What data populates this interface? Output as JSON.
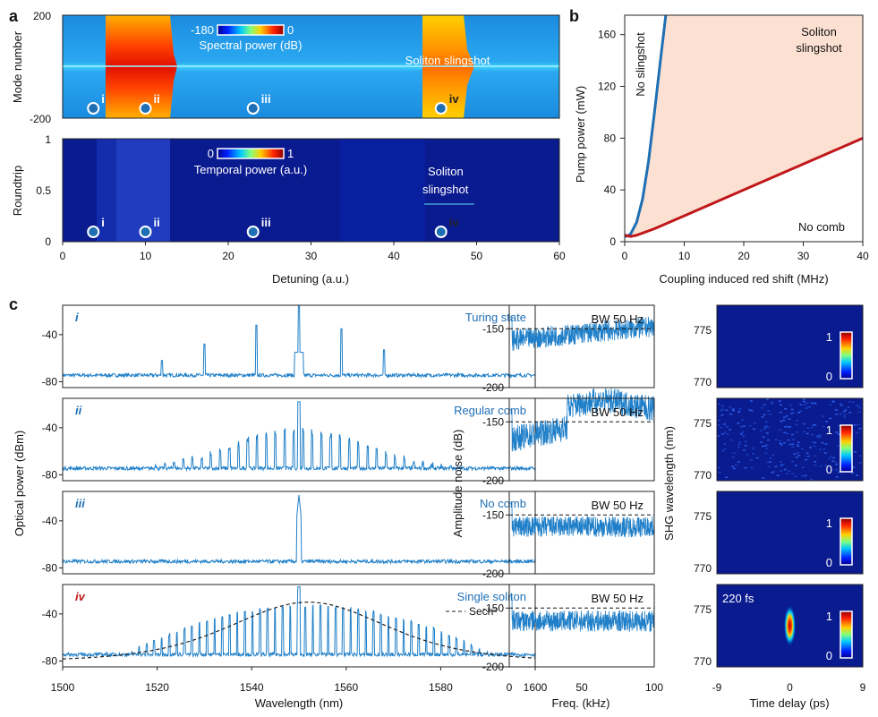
{
  "panel_labels": {
    "a": "a",
    "b": "b",
    "c": "c"
  },
  "chart_data": [
    {
      "id": "a-top",
      "type": "heatmap",
      "ylabel": "Mode number",
      "yticks": [
        "200",
        "-200"
      ],
      "ylim": [
        -200,
        200
      ],
      "colorbar": {
        "min_label": "-180",
        "max_label": "0",
        "title": "Spectral power (dB)"
      },
      "annotation": "Soliton slingshot",
      "markers": [
        {
          "label": "i",
          "x": 3.7
        },
        {
          "label": "ii",
          "x": 10
        },
        {
          "label": "iii",
          "x": 23
        },
        {
          "label": "iv",
          "x": 45.7
        }
      ]
    },
    {
      "id": "a-bottom",
      "type": "heatmap",
      "xlabel": "Detuning (a.u.)",
      "ylabel": "Roundtrip",
      "xlim": [
        0,
        60
      ],
      "xticks": [
        "0",
        "10",
        "20",
        "30",
        "40",
        "50",
        "60"
      ],
      "yticks": [
        "1",
        "0.5",
        "0"
      ],
      "ylim": [
        0,
        1
      ],
      "colorbar": {
        "min_label": "0",
        "max_label": "1",
        "title": "Temporal power (a.u.)"
      },
      "annotation": "Soliton slingshot",
      "markers": [
        {
          "label": "i",
          "x": 3.7
        },
        {
          "label": "ii",
          "x": 10
        },
        {
          "label": "iii",
          "x": 23
        },
        {
          "label": "iv",
          "x": 45.7
        }
      ]
    },
    {
      "id": "b",
      "type": "line",
      "xlabel": "Coupling induced red shift (MHz)",
      "ylabel": "Pump power (mW)",
      "xlim": [
        0,
        40
      ],
      "ylim": [
        0,
        175
      ],
      "xticks": [
        "0",
        "10",
        "20",
        "30",
        "40"
      ],
      "yticks": [
        "0",
        "40",
        "80",
        "120",
        "160"
      ],
      "regions": {
        "left": "No slingshot",
        "top_right": "Soliton",
        "top_right_2": "slingshot",
        "bottom_right": "No comb"
      },
      "series": [
        {
          "name": "slingshot boundary",
          "color": "#1f6fb5",
          "x": [
            0,
            0.5,
            1,
            2,
            3,
            4,
            5,
            6,
            6.9
          ],
          "y": [
            4,
            4.5,
            6,
            15,
            33,
            62,
            100,
            140,
            175
          ]
        },
        {
          "name": "comb boundary",
          "color": "#c0181b",
          "x": [
            0,
            1,
            2,
            5,
            10,
            20,
            30,
            40
          ],
          "y": [
            5,
            4,
            5,
            10,
            20,
            40,
            60,
            80
          ]
        }
      ]
    },
    {
      "id": "c-spectra",
      "type": "line",
      "xlabel": "Wavelength (nm)",
      "ylabel": "Optical power (dBm)",
      "xlim": [
        1500,
        1600
      ],
      "xticks": [
        "1500",
        "1520",
        "1540",
        "1560",
        "1580",
        "1600"
      ],
      "yticks": [
        "-40",
        "-80"
      ],
      "panels": [
        {
          "roman": "i",
          "title": "Turing state",
          "type": "turing"
        },
        {
          "roman": "ii",
          "title": "Regular comb",
          "type": "regular"
        },
        {
          "roman": "iii",
          "title": "No comb",
          "type": "none"
        },
        {
          "roman": "iv",
          "title": "Single soliton",
          "type": "soliton",
          "legend": "Sech²"
        }
      ]
    },
    {
      "id": "c-noise",
      "type": "line",
      "xlabel": "Freq. (kHz)",
      "ylabel": "Amplitude noise (dB)",
      "xlim": [
        0,
        100
      ],
      "xticks": [
        "0",
        "50",
        "100"
      ],
      "yticks": [
        "-150",
        "-200"
      ],
      "annotation": "BW 50 Hz",
      "reference_level_db": -150
    },
    {
      "id": "c-shg",
      "type": "heatmap",
      "xlabel": "Time delay (ps)",
      "ylabel": "SHG wavelength (nm)",
      "xticks": [
        "-9",
        "0",
        "9"
      ],
      "yticks": [
        "775",
        "770"
      ],
      "colorbar_labels": [
        "1",
        "0"
      ],
      "pulse_label": "220 fs"
    }
  ]
}
